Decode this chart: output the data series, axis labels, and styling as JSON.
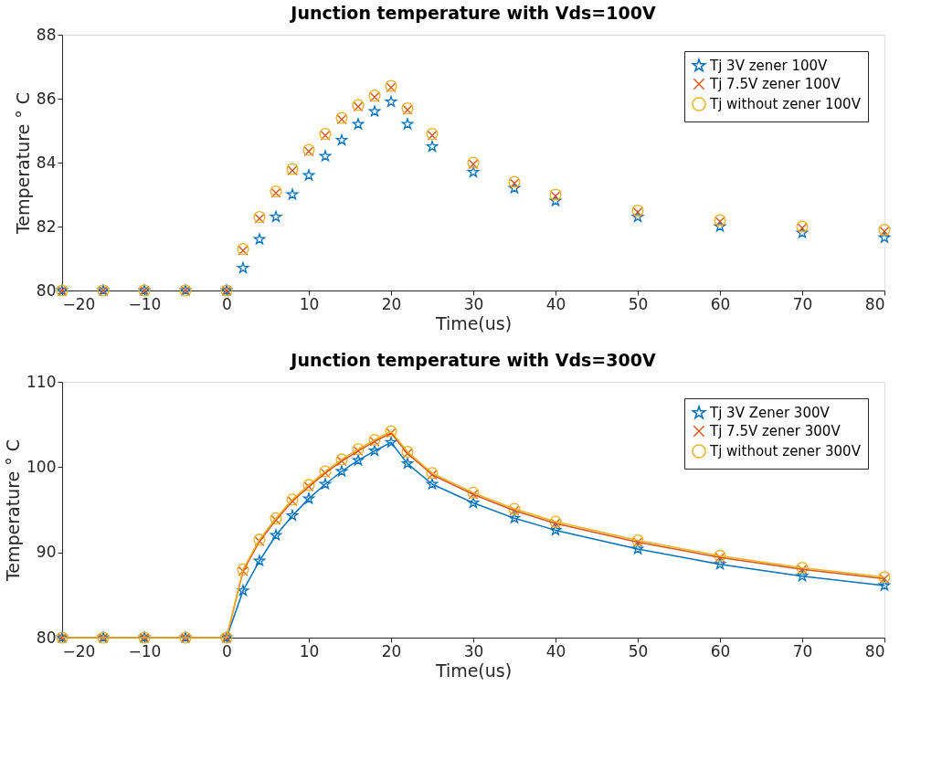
{
  "chart_data": [
    {
      "type": "scatter",
      "title": "Junction temperature with Vds=100V",
      "xlabel": "Time(us)",
      "ylabel": "Temperature ° C",
      "x": [
        -20,
        -15,
        -10,
        -5,
        0,
        2,
        4,
        6,
        8,
        10,
        12,
        14,
        16,
        18,
        20,
        22,
        25,
        30,
        35,
        40,
        50,
        60,
        70,
        80
      ],
      "xlim": [
        -20,
        80
      ],
      "xticks": [
        -20,
        -10,
        0,
        10,
        20,
        30,
        40,
        50,
        60,
        70,
        80
      ],
      "ylim": [
        80,
        88
      ],
      "yticks": [
        80,
        82,
        84,
        86,
        88
      ],
      "grid": false,
      "legend": "top right",
      "series": [
        {
          "name": "Tj 3V zener 100V",
          "color": "#0072bd",
          "marker": "star",
          "values": [
            80,
            80,
            80,
            80,
            80,
            80.7,
            81.6,
            82.3,
            83.0,
            83.6,
            84.2,
            84.7,
            85.2,
            85.6,
            85.9,
            85.2,
            84.5,
            83.7,
            83.2,
            82.8,
            82.3,
            82.0,
            81.8,
            81.65
          ]
        },
        {
          "name": "Tj 7.5V zener 100V",
          "color": "#d95319",
          "marker": "cross",
          "values": [
            80,
            80,
            80,
            80,
            80,
            81.25,
            82.25,
            83.05,
            83.75,
            84.35,
            84.85,
            85.35,
            85.75,
            86.05,
            86.35,
            85.65,
            84.85,
            83.95,
            83.35,
            82.95,
            82.45,
            82.15,
            81.95,
            81.85
          ]
        },
        {
          "name": "Tj without zener 100V",
          "color": "#edb120",
          "marker": "circle",
          "values": [
            80,
            80,
            80,
            80,
            80,
            81.3,
            82.3,
            83.1,
            83.8,
            84.4,
            84.9,
            85.4,
            85.8,
            86.1,
            86.4,
            85.7,
            84.9,
            84.0,
            83.4,
            83.0,
            82.5,
            82.2,
            82.0,
            81.9
          ]
        }
      ]
    },
    {
      "type": "line",
      "title": "Junction temperature with Vds=300V",
      "xlabel": "Time(us)",
      "ylabel": "Temperature ° C",
      "x": [
        -20,
        -15,
        -10,
        -5,
        0,
        2,
        4,
        6,
        8,
        10,
        12,
        14,
        16,
        18,
        20,
        22,
        25,
        30,
        35,
        40,
        50,
        60,
        70,
        80
      ],
      "xlim": [
        -20,
        80
      ],
      "xticks": [
        -20,
        -10,
        0,
        10,
        20,
        30,
        40,
        50,
        60,
        70,
        80
      ],
      "ylim": [
        80,
        110
      ],
      "yticks": [
        80,
        90,
        100,
        110
      ],
      "grid": false,
      "legend": "top right",
      "line_style": "solid",
      "series": [
        {
          "name": "Tj 3V Zener 300V",
          "color": "#0072bd",
          "marker": "star",
          "values": [
            80,
            80,
            80,
            80,
            80,
            85.5,
            89.0,
            92.0,
            94.3,
            96.3,
            98.0,
            99.5,
            100.8,
            101.9,
            102.9,
            100.4,
            98.0,
            95.8,
            94.0,
            92.6,
            90.4,
            88.6,
            87.2,
            86.1
          ]
        },
        {
          "name": "Tj 7.5V zener 300V",
          "color": "#d95319",
          "marker": "cross",
          "values": [
            80,
            80,
            80,
            80,
            80,
            87.8,
            91.3,
            93.8,
            96.0,
            97.7,
            99.3,
            100.7,
            101.9,
            103.0,
            104.0,
            101.6,
            99.1,
            96.8,
            94.9,
            93.4,
            91.2,
            89.4,
            88.0,
            86.9
          ]
        },
        {
          "name": "Tj without zener 300V",
          "color": "#edb120",
          "marker": "circle",
          "values": [
            80,
            80,
            80,
            80,
            80,
            88.0,
            91.5,
            94.0,
            96.2,
            97.9,
            99.5,
            100.9,
            102.1,
            103.2,
            104.2,
            101.8,
            99.3,
            97.0,
            95.1,
            93.6,
            91.4,
            89.6,
            88.2,
            87.1
          ]
        }
      ]
    }
  ]
}
